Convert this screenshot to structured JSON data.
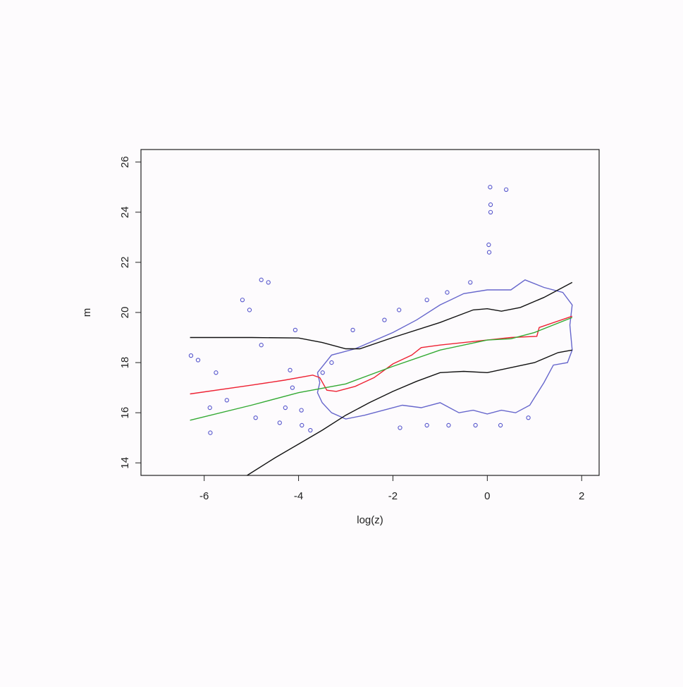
{
  "chart_data": {
    "type": "line",
    "x_label": "log(z)",
    "y_label": "m",
    "xlim": [
      -7.34,
      2.37
    ],
    "ylim": [
      13.5,
      26.5
    ],
    "xticks": [
      -6,
      -4,
      -2,
      0,
      2
    ],
    "yticks": [
      14,
      16,
      18,
      20,
      22,
      24,
      26
    ],
    "series": [
      {
        "type": "scatter",
        "color": "#5555cc",
        "x": [
          -6.28,
          -6.13,
          -5.75,
          -5.88,
          -5.87,
          -5.52,
          -5.19,
          -5.04,
          -4.79,
          -4.64,
          -4.79,
          -4.91,
          -4.4,
          -4.28,
          -4.18,
          -4.13,
          -4.07,
          -3.94,
          -3.93,
          -3.75,
          -3.49,
          -3.3,
          -2.85,
          -2.18,
          -1.87,
          -1.85,
          -1.28,
          -1.28,
          -0.85,
          -0.82,
          -0.36,
          -0.25,
          0.06,
          0.07,
          0.07,
          0.03,
          0.04,
          0.4,
          0.28,
          0.87
        ],
        "values": [
          18.28,
          18.1,
          17.6,
          16.2,
          15.2,
          16.5,
          20.5,
          20.1,
          21.3,
          21.2,
          18.7,
          15.8,
          15.6,
          16.2,
          17.7,
          17.0,
          19.3,
          16.1,
          15.5,
          15.3,
          17.6,
          18.0,
          19.3,
          19.7,
          20.1,
          15.4,
          20.5,
          15.5,
          20.8,
          15.5,
          21.2,
          15.5,
          25.0,
          24.3,
          24.0,
          22.7,
          22.4,
          24.9,
          15.5,
          15.8
        ]
      },
      {
        "type": "line",
        "color": "#6666cc",
        "x": [
          -3.6,
          -3.3,
          -2.8,
          -2,
          -1.5,
          -1,
          -0.5,
          0,
          0.5,
          0.8,
          1.2,
          1.6,
          1.8,
          1.75,
          1.8,
          1.7,
          1.4,
          1.2,
          1.0,
          0.9,
          0.6,
          0.3,
          0,
          -0.3,
          -0.6,
          -1,
          -1.4,
          -1.8,
          -2.2,
          -2.6,
          -3,
          -3.3,
          -3.5,
          -3.6,
          -3.55,
          -3.6
        ],
        "values": [
          17.6,
          18.3,
          18.55,
          19.2,
          19.7,
          20.3,
          20.75,
          20.9,
          20.9,
          21.3,
          21.0,
          20.8,
          20.3,
          19.5,
          18.5,
          18.0,
          17.9,
          17.2,
          16.6,
          16.3,
          16.0,
          16.1,
          15.95,
          16.1,
          16.0,
          16.4,
          16.2,
          16.3,
          16.1,
          15.9,
          15.75,
          16.0,
          16.4,
          16.8,
          17.2,
          17.6
        ]
      },
      {
        "type": "line",
        "color": "#111111",
        "x": [
          -6.3,
          -5,
          -4,
          -3.5,
          -3,
          -2.7,
          -2,
          -1,
          -0.3,
          0,
          0.3,
          0.7,
          1.2,
          1.8
        ],
        "values": [
          19.0,
          19.0,
          18.98,
          18.8,
          18.55,
          18.55,
          19.0,
          19.6,
          20.1,
          20.15,
          20.05,
          20.2,
          20.6,
          21.2
        ]
      },
      {
        "type": "line",
        "color": "#111111",
        "x": [
          -5.09,
          -4.5,
          -4,
          -3.5,
          -3,
          -2.5,
          -2,
          -1.5,
          -1,
          -0.5,
          0,
          0.5,
          1,
          1.5,
          1.8
        ],
        "values": [
          13.5,
          14.2,
          14.75,
          15.3,
          15.9,
          16.4,
          16.85,
          17.25,
          17.6,
          17.65,
          17.6,
          17.8,
          18.0,
          18.4,
          18.5
        ]
      },
      {
        "type": "line",
        "color": "#ee2233",
        "x": [
          -6.3,
          -5,
          -4.3,
          -3.7,
          -3.55,
          -3.4,
          -3.2,
          -2.8,
          -2.4,
          -2,
          -1.6,
          -1.4,
          -1,
          0,
          0.5,
          1.05,
          1.1,
          1.8
        ],
        "values": [
          16.75,
          17.1,
          17.3,
          17.5,
          17.4,
          16.9,
          16.85,
          17.05,
          17.4,
          17.95,
          18.3,
          18.6,
          18.7,
          18.9,
          19.0,
          19.05,
          19.4,
          19.85
        ]
      },
      {
        "type": "line",
        "color": "#33aa33",
        "x": [
          -6.3,
          -5,
          -4,
          -3,
          -2,
          -1,
          0,
          0.5,
          1,
          1.8
        ],
        "values": [
          15.7,
          16.3,
          16.8,
          17.15,
          17.85,
          18.5,
          18.9,
          18.95,
          19.2,
          19.8
        ]
      }
    ]
  }
}
